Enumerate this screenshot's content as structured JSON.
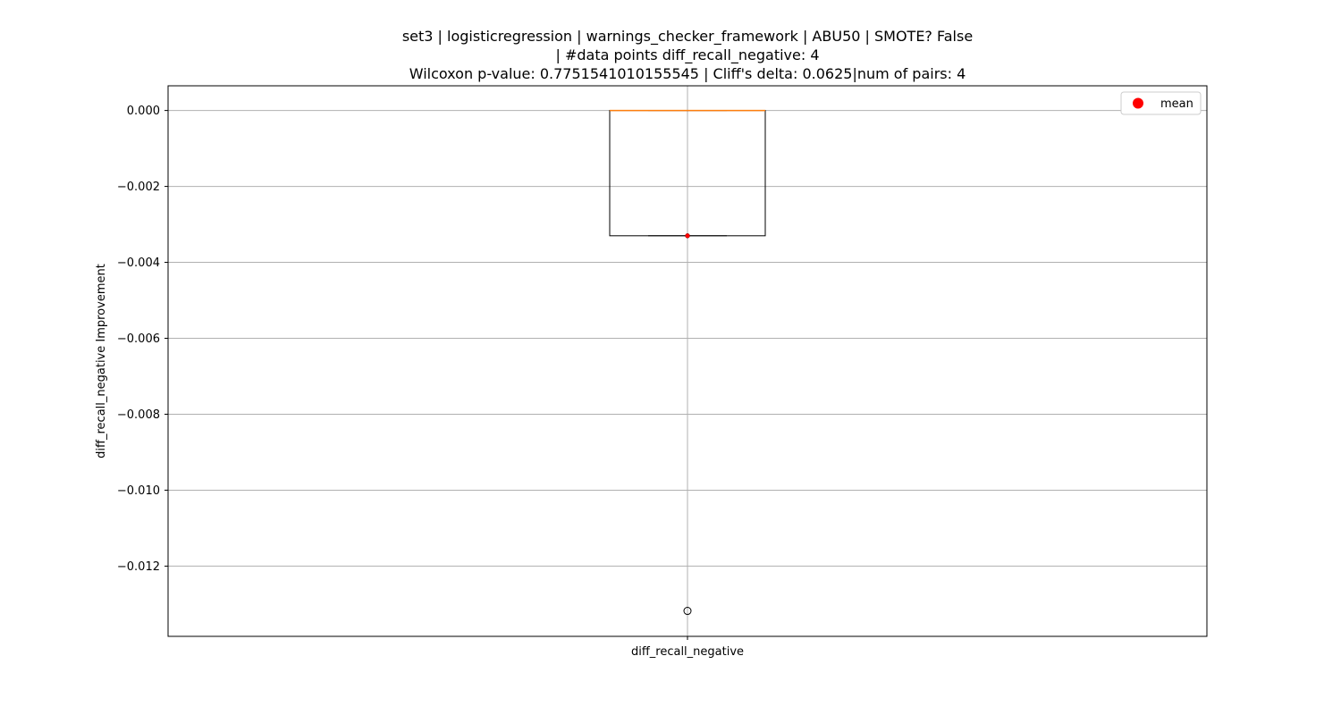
{
  "chart_data": {
    "type": "box",
    "title_lines": [
      "set3 | logisticregression | warnings_checker_framework | ABU50 | SMOTE? False",
      "| #data points diff_recall_negative: 4",
      "Wilcoxon p-value: 0.7751541010155545 | Cliff's delta: 0.0625|num of pairs: 4"
    ],
    "xlabel": "",
    "ylabel": "diff_recall_negative Improvement",
    "categories": [
      "diff_recall_negative"
    ],
    "ylim": [
      -0.01385,
      0.00065
    ],
    "yticks": [
      0.0,
      -0.002,
      -0.004,
      -0.006,
      -0.008,
      -0.01,
      -0.012
    ],
    "ytick_labels": [
      "0.000",
      "−0.002",
      "−0.004",
      "−0.006",
      "−0.008",
      "−0.010",
      "−0.012"
    ],
    "grid": true,
    "legend": {
      "position": "top-right",
      "entries": [
        "mean"
      ]
    },
    "boxes": [
      {
        "name": "diff_recall_negative",
        "q1": -0.0033,
        "median": 0.0,
        "q3": 0.0,
        "whisker_low": -0.0033,
        "whisker_high": 0.0,
        "mean": -0.0033,
        "outliers": [
          -0.01318
        ]
      }
    ],
    "colors": {
      "box": "#000000",
      "median": "#ff7f0e",
      "mean": "#ff0000",
      "grid": "#b0b0b0",
      "outlier": "#000000"
    }
  }
}
